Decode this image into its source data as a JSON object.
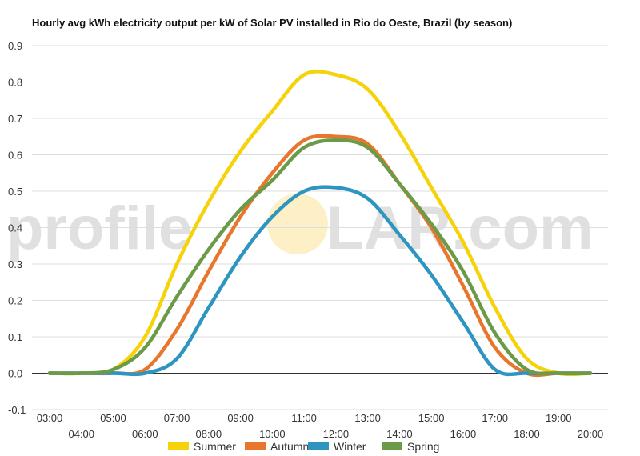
{
  "chart_data": {
    "type": "line",
    "title": "Hourly avg kWh electricity output per kW of Solar PV installed in Rio do Oeste, Brazil (by season)",
    "watermark": {
      "left": "profile",
      "right": "LAR.com"
    },
    "xlabel": "",
    "ylabel": "",
    "x": [
      "03:00",
      "04:00",
      "05:00",
      "06:00",
      "07:00",
      "08:00",
      "09:00",
      "10:00",
      "11:00",
      "12:00",
      "13:00",
      "14:00",
      "15:00",
      "16:00",
      "17:00",
      "18:00",
      "19:00",
      "20:00"
    ],
    "ylim": [
      -0.1,
      0.9
    ],
    "yticks": [
      "-0.1",
      "0.0",
      "0.1",
      "0.2",
      "0.3",
      "0.4",
      "0.5",
      "0.6",
      "0.7",
      "0.8",
      "0.9"
    ],
    "grid": true,
    "legend_position": "bottom",
    "series": [
      {
        "name": "Summer",
        "color": "#f5d20a",
        "values": [
          0.0,
          0.0,
          0.01,
          0.1,
          0.3,
          0.47,
          0.61,
          0.72,
          0.82,
          0.82,
          0.78,
          0.66,
          0.51,
          0.36,
          0.18,
          0.04,
          0.0,
          0.0
        ]
      },
      {
        "name": "Autumn",
        "color": "#e8762c",
        "values": [
          0.0,
          0.0,
          0.0,
          0.01,
          0.12,
          0.28,
          0.43,
          0.55,
          0.64,
          0.65,
          0.63,
          0.52,
          0.4,
          0.24,
          0.07,
          0.0,
          0.0,
          0.0
        ]
      },
      {
        "name": "Winter",
        "color": "#2e95c1",
        "values": [
          0.0,
          0.0,
          0.0,
          0.0,
          0.04,
          0.18,
          0.32,
          0.43,
          0.5,
          0.51,
          0.48,
          0.38,
          0.27,
          0.14,
          0.01,
          0.0,
          0.0,
          0.0
        ]
      },
      {
        "name": "Spring",
        "color": "#6b9a48",
        "values": [
          0.0,
          0.0,
          0.01,
          0.07,
          0.21,
          0.34,
          0.45,
          0.53,
          0.62,
          0.64,
          0.62,
          0.52,
          0.41,
          0.28,
          0.11,
          0.01,
          0.0,
          0.0
        ]
      }
    ]
  }
}
